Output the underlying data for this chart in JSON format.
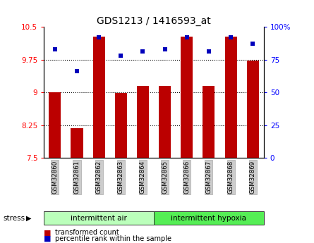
{
  "title": "GDS1213 / 1416593_at",
  "samples": [
    "GSM32860",
    "GSM32861",
    "GSM32862",
    "GSM32863",
    "GSM32864",
    "GSM32865",
    "GSM32866",
    "GSM32867",
    "GSM32868",
    "GSM32869"
  ],
  "bar_values": [
    9.0,
    8.18,
    10.28,
    8.98,
    9.15,
    9.14,
    10.28,
    9.15,
    10.28,
    9.72
  ],
  "dot_values_pct": [
    83,
    66,
    92,
    78,
    81,
    83,
    92,
    81,
    92,
    87
  ],
  "ylim_left": [
    7.5,
    10.5
  ],
  "ylim_right": [
    0,
    100
  ],
  "yticks_left": [
    7.5,
    8.25,
    9.0,
    9.75,
    10.5
  ],
  "ytick_labels_left": [
    "7.5",
    "8.25",
    "9",
    "9.75",
    "10.5"
  ],
  "yticks_right": [
    0,
    25,
    50,
    75,
    100
  ],
  "ytick_labels_right": [
    "0",
    "25",
    "50",
    "75",
    "100%"
  ],
  "hlines": [
    8.25,
    9.0,
    9.75
  ],
  "bar_color": "#bb0000",
  "dot_color": "#0000bb",
  "group1_label": "intermittent air",
  "group2_label": "intermittent hypoxia",
  "group1_color": "#bbffbb",
  "group2_color": "#55ee55",
  "stress_label": "stress",
  "legend_bar_label": "transformed count",
  "legend_dot_label": "percentile rank within the sample",
  "tick_label_bg": "#cccccc",
  "bar_bottom": 7.5
}
